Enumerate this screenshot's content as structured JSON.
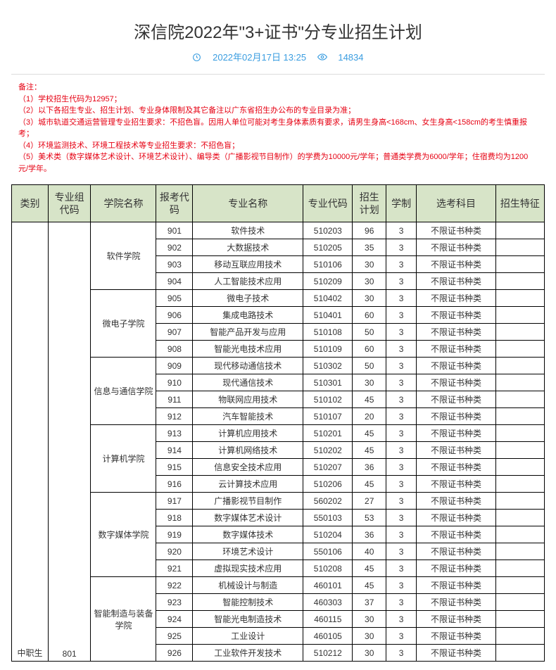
{
  "title": "深信院2022年\"3+证书\"分专业招生计划",
  "date": "2022年02月17日 13:25",
  "views": "14834",
  "notes_title": "备注：",
  "notes": [
    "（1）学校招生代码为12957；",
    "（2）以下各招生专业、招生计划、专业身体限制及其它备注以广东省招生办公布的专业目录为准；",
    "（3）城市轨道交通运营管理专业招生要求：不招色盲。因用人单位可能对考生身体素质有要求，请男生身高<168cm、女生身高<158cm的考生慎重报考；",
    "（4）环境监测技术、环境工程技术等专业招生要求：不招色盲；",
    "（5）美术类（数字媒体艺术设计、环境艺术设计）、编导类（广播影视节目制作）的学费为10000元/学年；普通类学费为6000/学年；住宿费均为1200元/学年。"
  ],
  "headers": {
    "category": "类别",
    "group_code": "专业组代码",
    "college": "学院名称",
    "exam_code": "报考代码",
    "major": "专业名称",
    "major_code": "专业代码",
    "plan": "招生计划",
    "years": "学制",
    "subject": "选考科目",
    "feature": "招生特征"
  },
  "table": {
    "category": "中职生",
    "group_code": "801",
    "colleges": [
      {
        "name": "软件学院",
        "rows": [
          {
            "code": "901",
            "major": "软件技术",
            "mcode": "510203",
            "plan": "96",
            "years": "3",
            "subj": "不限证书种类",
            "feat": ""
          },
          {
            "code": "902",
            "major": "大数据技术",
            "mcode": "510205",
            "plan": "35",
            "years": "3",
            "subj": "不限证书种类",
            "feat": ""
          },
          {
            "code": "903",
            "major": "移动互联应用技术",
            "mcode": "510106",
            "plan": "30",
            "years": "3",
            "subj": "不限证书种类",
            "feat": ""
          },
          {
            "code": "904",
            "major": "人工智能技术应用",
            "mcode": "510209",
            "plan": "30",
            "years": "3",
            "subj": "不限证书种类",
            "feat": ""
          }
        ]
      },
      {
        "name": "微电子学院",
        "rows": [
          {
            "code": "905",
            "major": "微电子技术",
            "mcode": "510402",
            "plan": "30",
            "years": "3",
            "subj": "不限证书种类",
            "feat": ""
          },
          {
            "code": "906",
            "major": "集成电路技术",
            "mcode": "510401",
            "plan": "60",
            "years": "3",
            "subj": "不限证书种类",
            "feat": ""
          },
          {
            "code": "907",
            "major": "智能产品开发与应用",
            "mcode": "510108",
            "plan": "50",
            "years": "3",
            "subj": "不限证书种类",
            "feat": ""
          },
          {
            "code": "908",
            "major": "智能光电技术应用",
            "mcode": "510109",
            "plan": "60",
            "years": "3",
            "subj": "不限证书种类",
            "feat": ""
          }
        ]
      },
      {
        "name": "信息与通信学院",
        "rows": [
          {
            "code": "909",
            "major": "现代移动通信技术",
            "mcode": "510302",
            "plan": "50",
            "years": "3",
            "subj": "不限证书种类",
            "feat": ""
          },
          {
            "code": "910",
            "major": "现代通信技术",
            "mcode": "510301",
            "plan": "30",
            "years": "3",
            "subj": "不限证书种类",
            "feat": ""
          },
          {
            "code": "911",
            "major": "物联网应用技术",
            "mcode": "510102",
            "plan": "45",
            "years": "3",
            "subj": "不限证书种类",
            "feat": ""
          },
          {
            "code": "912",
            "major": "汽车智能技术",
            "mcode": "510107",
            "plan": "20",
            "years": "3",
            "subj": "不限证书种类",
            "feat": ""
          }
        ]
      },
      {
        "name": "计算机学院",
        "rows": [
          {
            "code": "913",
            "major": "计算机应用技术",
            "mcode": "510201",
            "plan": "45",
            "years": "3",
            "subj": "不限证书种类",
            "feat": ""
          },
          {
            "code": "914",
            "major": "计算机网络技术",
            "mcode": "510202",
            "plan": "45",
            "years": "3",
            "subj": "不限证书种类",
            "feat": ""
          },
          {
            "code": "915",
            "major": "信息安全技术应用",
            "mcode": "510207",
            "plan": "36",
            "years": "3",
            "subj": "不限证书种类",
            "feat": ""
          },
          {
            "code": "916",
            "major": "云计算技术应用",
            "mcode": "510206",
            "plan": "45",
            "years": "3",
            "subj": "不限证书种类",
            "feat": ""
          }
        ]
      },
      {
        "name": "数字媒体学院",
        "rows": [
          {
            "code": "917",
            "major": "广播影视节目制作",
            "mcode": "560202",
            "plan": "27",
            "years": "3",
            "subj": "不限证书种类",
            "feat": ""
          },
          {
            "code": "918",
            "major": "数字媒体艺术设计",
            "mcode": "550103",
            "plan": "53",
            "years": "3",
            "subj": "不限证书种类",
            "feat": ""
          },
          {
            "code": "919",
            "major": "数字媒体技术",
            "mcode": "510204",
            "plan": "36",
            "years": "3",
            "subj": "不限证书种类",
            "feat": ""
          },
          {
            "code": "920",
            "major": "环境艺术设计",
            "mcode": "550106",
            "plan": "40",
            "years": "3",
            "subj": "不限证书种类",
            "feat": ""
          },
          {
            "code": "921",
            "major": "虚拟现实技术应用",
            "mcode": "510208",
            "plan": "45",
            "years": "3",
            "subj": "不限证书种类",
            "feat": ""
          }
        ]
      },
      {
        "name": "智能制造与装备学院",
        "rows": [
          {
            "code": "922",
            "major": "机械设计与制造",
            "mcode": "460101",
            "plan": "45",
            "years": "3",
            "subj": "不限证书种类",
            "feat": ""
          },
          {
            "code": "923",
            "major": "智能控制技术",
            "mcode": "460303",
            "plan": "37",
            "years": "3",
            "subj": "不限证书种类",
            "feat": ""
          },
          {
            "code": "924",
            "major": "智能光电制造技术",
            "mcode": "460115",
            "plan": "30",
            "years": "3",
            "subj": "不限证书种类",
            "feat": ""
          },
          {
            "code": "925",
            "major": "工业设计",
            "mcode": "460105",
            "plan": "30",
            "years": "3",
            "subj": "不限证书种类",
            "feat": ""
          },
          {
            "code": "926",
            "major": "工业软件开发技术",
            "mcode": "510212",
            "plan": "30",
            "years": "3",
            "subj": "不限证书种类",
            "feat": ""
          }
        ]
      }
    ]
  }
}
